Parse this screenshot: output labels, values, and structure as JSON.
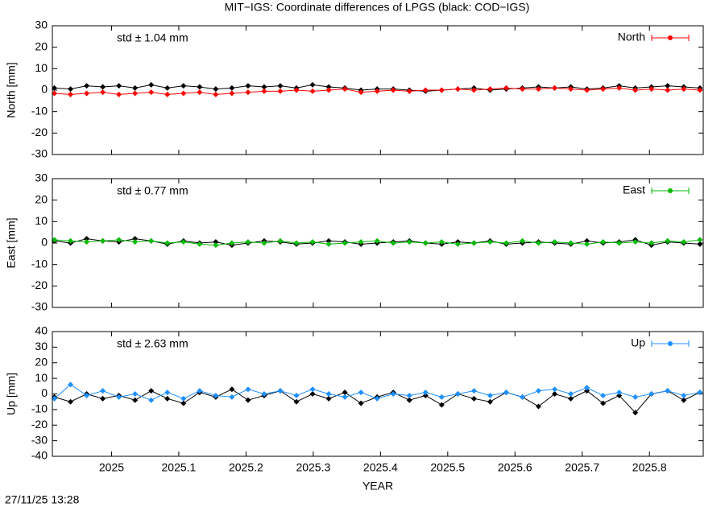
{
  "title": "MIT−IGS: Coordinate differences of LPGS (black: COD−IGS)",
  "xlabel": "YEAR",
  "timestamp": "27/11/25 13:28",
  "chart_data": [
    {
      "type": "line",
      "ylabel": "North [mm]",
      "annotation": "std ± 1.04 mm",
      "annotation_color": "#ff0000",
      "xlim": [
        2024.912,
        2025.88
      ],
      "xticks": [
        2025,
        2025.1,
        2025.2,
        2025.3,
        2025.4,
        2025.5,
        2025.6,
        2025.7,
        2025.8
      ],
      "xtick_labels": false,
      "ylim": [
        -30,
        30
      ],
      "yticks": [
        -30,
        -20,
        -10,
        0,
        10,
        20,
        30
      ],
      "legend": "upper right",
      "x": [
        2024.915,
        2024.939,
        2024.963,
        2024.987,
        2025.011,
        2025.035,
        2025.059,
        2025.083,
        2025.107,
        2025.131,
        2025.155,
        2025.179,
        2025.203,
        2025.227,
        2025.251,
        2025.275,
        2025.299,
        2025.323,
        2025.347,
        2025.371,
        2025.395,
        2025.419,
        2025.443,
        2025.467,
        2025.491,
        2025.515,
        2025.539,
        2025.563,
        2025.587,
        2025.611,
        2025.635,
        2025.659,
        2025.683,
        2025.707,
        2025.731,
        2025.755,
        2025.779,
        2025.803,
        2025.827,
        2025.851,
        2025.875
      ],
      "series": [
        {
          "color": "#000000",
          "values": [
            1,
            0.5,
            2,
            1.5,
            2,
            1,
            2.5,
            1,
            2,
            1.5,
            0.5,
            1,
            2,
            1.5,
            2,
            1,
            2.5,
            1.5,
            1,
            0,
            0.5,
            0.5,
            0,
            -0.5,
            0,
            0.5,
            1,
            0,
            0.5,
            1,
            1.5,
            1,
            1.5,
            0.5,
            1,
            2,
            1,
            1.5,
            2,
            1.5,
            1
          ]
        },
        {
          "name": "North",
          "color": "#ff0000",
          "values": [
            -1.5,
            -2,
            -1.5,
            -1,
            -2,
            -1.5,
            -1,
            -2,
            -1.5,
            -1,
            -2,
            -1.5,
            -1,
            -0.5,
            -0.5,
            0,
            -0.5,
            0,
            0.5,
            -1,
            -0.5,
            0,
            -0.5,
            0,
            0,
            0.5,
            0,
            0.5,
            1,
            0.5,
            0.5,
            1,
            0.5,
            0,
            0.5,
            1,
            0,
            0.5,
            0,
            0.5,
            0
          ]
        }
      ]
    },
    {
      "type": "line",
      "ylabel": "East [mm]",
      "annotation": "std ± 0.77 mm",
      "annotation_color": "#00bb00",
      "xlim": [
        2024.912,
        2025.88
      ],
      "xticks": [
        2025,
        2025.1,
        2025.2,
        2025.3,
        2025.4,
        2025.5,
        2025.6,
        2025.7,
        2025.8
      ],
      "xtick_labels": false,
      "ylim": [
        -30,
        30
      ],
      "yticks": [
        -30,
        -20,
        -10,
        0,
        10,
        20,
        30
      ],
      "legend": "upper right",
      "x": [
        2024.915,
        2024.939,
        2024.963,
        2024.987,
        2025.011,
        2025.035,
        2025.059,
        2025.083,
        2025.107,
        2025.131,
        2025.155,
        2025.179,
        2025.203,
        2025.227,
        2025.251,
        2025.275,
        2025.299,
        2025.323,
        2025.347,
        2025.371,
        2025.395,
        2025.419,
        2025.443,
        2025.467,
        2025.491,
        2025.515,
        2025.539,
        2025.563,
        2025.587,
        2025.611,
        2025.635,
        2025.659,
        2025.683,
        2025.707,
        2025.731,
        2025.755,
        2025.779,
        2025.803,
        2025.827,
        2025.851,
        2025.875
      ],
      "series": [
        {
          "color": "#000000",
          "values": [
            1,
            0,
            2,
            1,
            0.5,
            2,
            1,
            -0.5,
            1,
            0,
            0.5,
            -1,
            0,
            1,
            0.5,
            -0.5,
            0,
            1,
            0.5,
            -0.5,
            0,
            0.5,
            1,
            0,
            -0.5,
            0.5,
            0,
            1,
            -0.5,
            0,
            0.5,
            0,
            -0.5,
            1,
            0,
            0.5,
            1.5,
            -1,
            0.5,
            0,
            -0.5
          ]
        },
        {
          "name": "East",
          "color": "#00bb00",
          "values": [
            1.5,
            1,
            0.5,
            1,
            1.5,
            0.5,
            1,
            0,
            0.5,
            -0.5,
            -1,
            0,
            0.5,
            0,
            1,
            0,
            0.5,
            -0.5,
            0,
            0.5,
            1,
            0,
            0.5,
            0,
            0.5,
            -0.5,
            0,
            0.5,
            0,
            1,
            0,
            0.5,
            0,
            -0.5,
            0.5,
            0,
            0.5,
            0,
            1,
            0.5,
            1.5
          ]
        }
      ]
    },
    {
      "type": "line",
      "ylabel": "Up [mm]",
      "annotation": "std ± 2.63 mm",
      "annotation_color": "#1e90ff",
      "xlim": [
        2024.912,
        2025.88
      ],
      "xticks": [
        2025,
        2025.1,
        2025.2,
        2025.3,
        2025.4,
        2025.5,
        2025.6,
        2025.7,
        2025.8
      ],
      "xtick_labels": true,
      "ylim": [
        -40,
        40
      ],
      "yticks": [
        -40,
        -30,
        -20,
        -10,
        0,
        10,
        20,
        30,
        40
      ],
      "legend": "upper right",
      "x": [
        2024.915,
        2024.939,
        2024.963,
        2024.987,
        2025.011,
        2025.035,
        2025.059,
        2025.083,
        2025.107,
        2025.131,
        2025.155,
        2025.179,
        2025.203,
        2025.227,
        2025.251,
        2025.275,
        2025.299,
        2025.323,
        2025.347,
        2025.371,
        2025.395,
        2025.419,
        2025.443,
        2025.467,
        2025.491,
        2025.515,
        2025.539,
        2025.563,
        2025.587,
        2025.611,
        2025.635,
        2025.659,
        2025.683,
        2025.707,
        2025.731,
        2025.755,
        2025.779,
        2025.803,
        2025.827,
        2025.851,
        2025.875
      ],
      "series": [
        {
          "color": "#000000",
          "values": [
            -2,
            -5,
            0,
            -3,
            -1,
            -4,
            2,
            -3,
            -6,
            1,
            -2,
            3,
            -4,
            -1,
            2,
            -5,
            0,
            -3,
            1,
            -6,
            -2,
            1,
            -4,
            -1,
            -7,
            0,
            -3,
            -5,
            1,
            -2,
            -8,
            0,
            -3,
            2,
            -6,
            -1,
            -12,
            0,
            2,
            -4,
            1
          ]
        },
        {
          "name": "Up",
          "color": "#1e90ff",
          "values": [
            -3,
            6,
            -1,
            2,
            -2,
            0,
            -4,
            1,
            -3,
            2,
            -1,
            -2,
            3,
            0,
            2,
            -1,
            3,
            0,
            -2,
            1,
            -3,
            0,
            -1,
            1,
            -2,
            0,
            2,
            -1,
            1,
            -2,
            2,
            3,
            0,
            4,
            -1,
            1,
            -2,
            0,
            2,
            -1,
            1
          ]
        }
      ]
    }
  ]
}
